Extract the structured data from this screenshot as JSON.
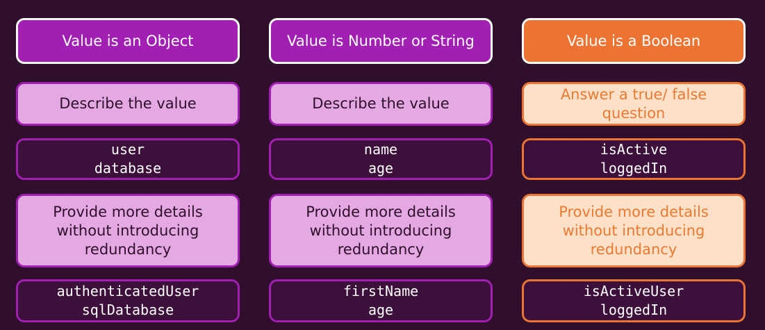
{
  "columns": [
    {
      "header": "Value is an Object",
      "description": "Describe the value",
      "examples": [
        "user",
        "database"
      ],
      "details": "Provide more details without introducing redundancy",
      "improved_examples": [
        "authenticatedUser",
        "sqlDatabase"
      ]
    },
    {
      "header": "Value is Number or String",
      "description": "Describe the value",
      "examples": [
        "name",
        "age"
      ],
      "details": "Provide more details without introducing redundancy",
      "improved_examples": [
        "firstName",
        "age"
      ]
    },
    {
      "header": "Value is a Boolean",
      "description": "Answer a true/ false question",
      "examples": [
        "isActive",
        "loggedIn"
      ],
      "details": "Provide more details without introducing redundancy",
      "improved_examples": [
        "isActiveUser",
        "loggedIn"
      ]
    }
  ],
  "colors": {
    "background": "#2f0f2b",
    "purple_accent": "#a21fb3",
    "purple_light": "#e4a8e2",
    "orange_accent": "#ec7331",
    "orange_light": "#fce0c8"
  }
}
